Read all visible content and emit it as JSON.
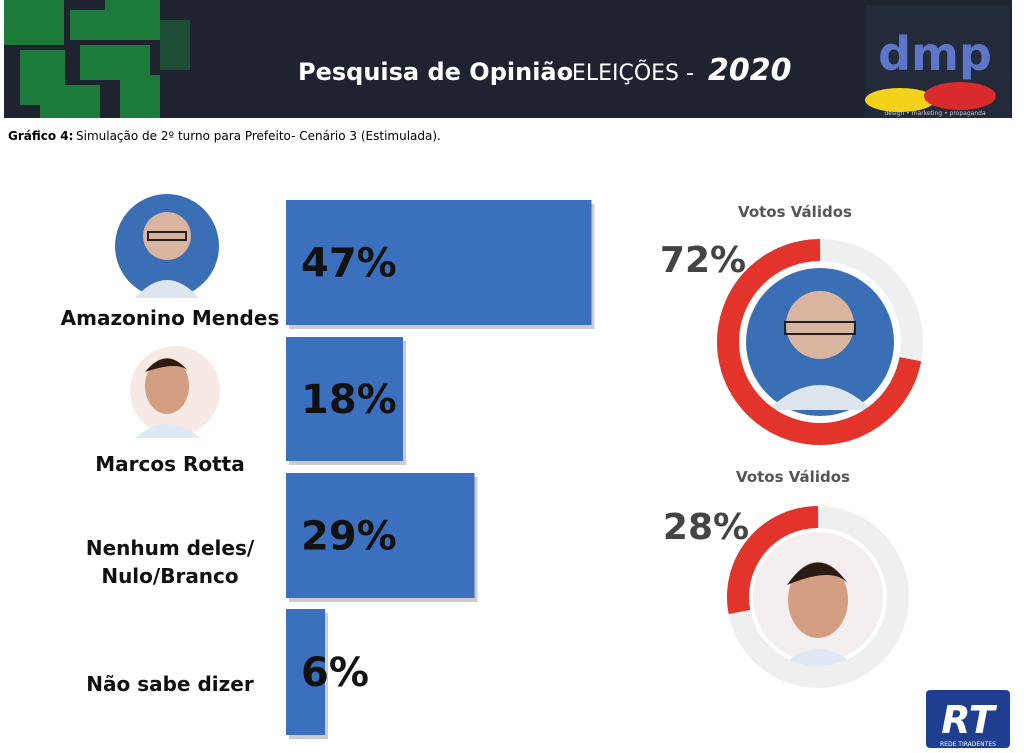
{
  "header": {
    "title": "Pesquisa de Opinião",
    "subtitle": "- ELEIÇÕES -",
    "year": "2020",
    "logo": "dmp",
    "logo_tagline": "design • marketing • propaganda"
  },
  "caption": {
    "label": "Gráfico 4:",
    "text": "Simulação de 2º turno para Prefeito- Cenário 3 (Estimulada)."
  },
  "chart_data": [
    {
      "type": "bar",
      "categories": [
        "Amazonino Mendes",
        "Marcos Rotta",
        "Nenhum deles/ Nulo/Branco",
        "Não sabe dizer"
      ],
      "values": [
        47,
        18,
        29,
        6
      ],
      "value_labels": [
        "47%",
        "18%",
        "29%",
        "6%"
      ],
      "color": "#3b70bf"
    },
    {
      "type": "donut",
      "title": "Votos Válidos",
      "values": [
        72
      ],
      "value_labels": [
        "72%"
      ],
      "color": "#e2342b"
    },
    {
      "type": "donut",
      "title": "Votos Válidos",
      "values": [
        28
      ],
      "value_labels": [
        "28%"
      ],
      "color": "#e2342b"
    }
  ],
  "footer_logo": {
    "mark": "RT",
    "name": "REDE TIRADENTES"
  }
}
